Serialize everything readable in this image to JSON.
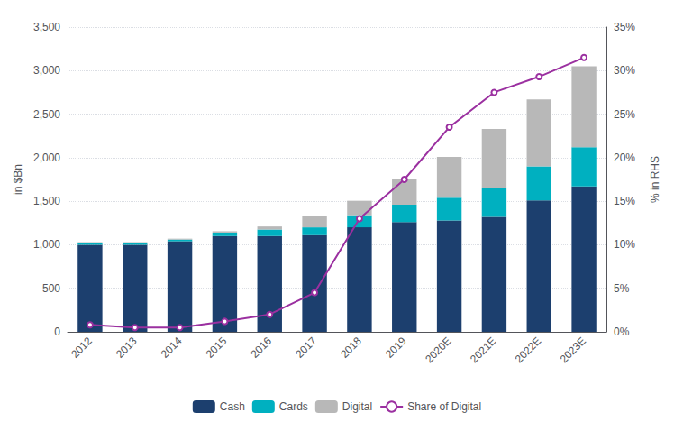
{
  "chart_data": {
    "type": "bar",
    "categories": [
      "2012",
      "2013",
      "2014",
      "2015",
      "2016",
      "2017",
      "2018",
      "2019",
      "2020E",
      "2021E",
      "2022E",
      "2023E"
    ],
    "stacked": true,
    "grid": true,
    "legend": "bottom",
    "ylabel": "in $Bn",
    "y2label": "% in RHS",
    "ylim": [
      0,
      3500
    ],
    "yticks": [
      0,
      500,
      {
        "value": 1000,
        "label": "1,000"
      },
      {
        "value": 1500,
        "label": "1,500"
      },
      {
        "value": 2000,
        "label": "2,000"
      },
      {
        "value": 2500,
        "label": "2,500"
      },
      {
        "value": 3000,
        "label": "3,000"
      },
      {
        "value": 3500,
        "label": "3,500"
      }
    ],
    "y2lim": [
      0,
      0.35
    ],
    "y2ticks": [
      {
        "value": 0.0,
        "label": "0%"
      },
      {
        "value": 0.05,
        "label": "5%"
      },
      {
        "value": 0.1,
        "label": "10%"
      },
      {
        "value": 0.15,
        "label": "15%"
      },
      {
        "value": 0.2,
        "label": "20%"
      },
      {
        "value": 0.25,
        "label": "25%"
      },
      {
        "value": 0.3,
        "label": "30%"
      },
      {
        "value": 0.35,
        "label": "35%"
      }
    ],
    "series": [
      {
        "name": "Cash",
        "type": "bar",
        "color": "#1c3f6e",
        "values": [
          1000,
          1000,
          1040,
          1100,
          1100,
          1110,
          1200,
          1260,
          1280,
          1320,
          1510,
          1670
        ]
      },
      {
        "name": "Cards",
        "type": "bar",
        "color": "#00b0c0",
        "values": [
          20,
          20,
          20,
          40,
          75,
          90,
          140,
          200,
          260,
          330,
          390,
          450
        ]
      },
      {
        "name": "Digital",
        "type": "bar",
        "color": "#b8b8b8",
        "values": [
          10,
          10,
          10,
          15,
          35,
          130,
          165,
          290,
          470,
          680,
          770,
          930
        ]
      },
      {
        "name": "Share of Digital",
        "type": "line",
        "axis": "y2",
        "color": "#9b30a0",
        "values": [
          0.008,
          0.005,
          0.005,
          0.012,
          0.02,
          0.045,
          0.13,
          0.175,
          0.235,
          0.275,
          0.293,
          0.315
        ]
      }
    ]
  }
}
